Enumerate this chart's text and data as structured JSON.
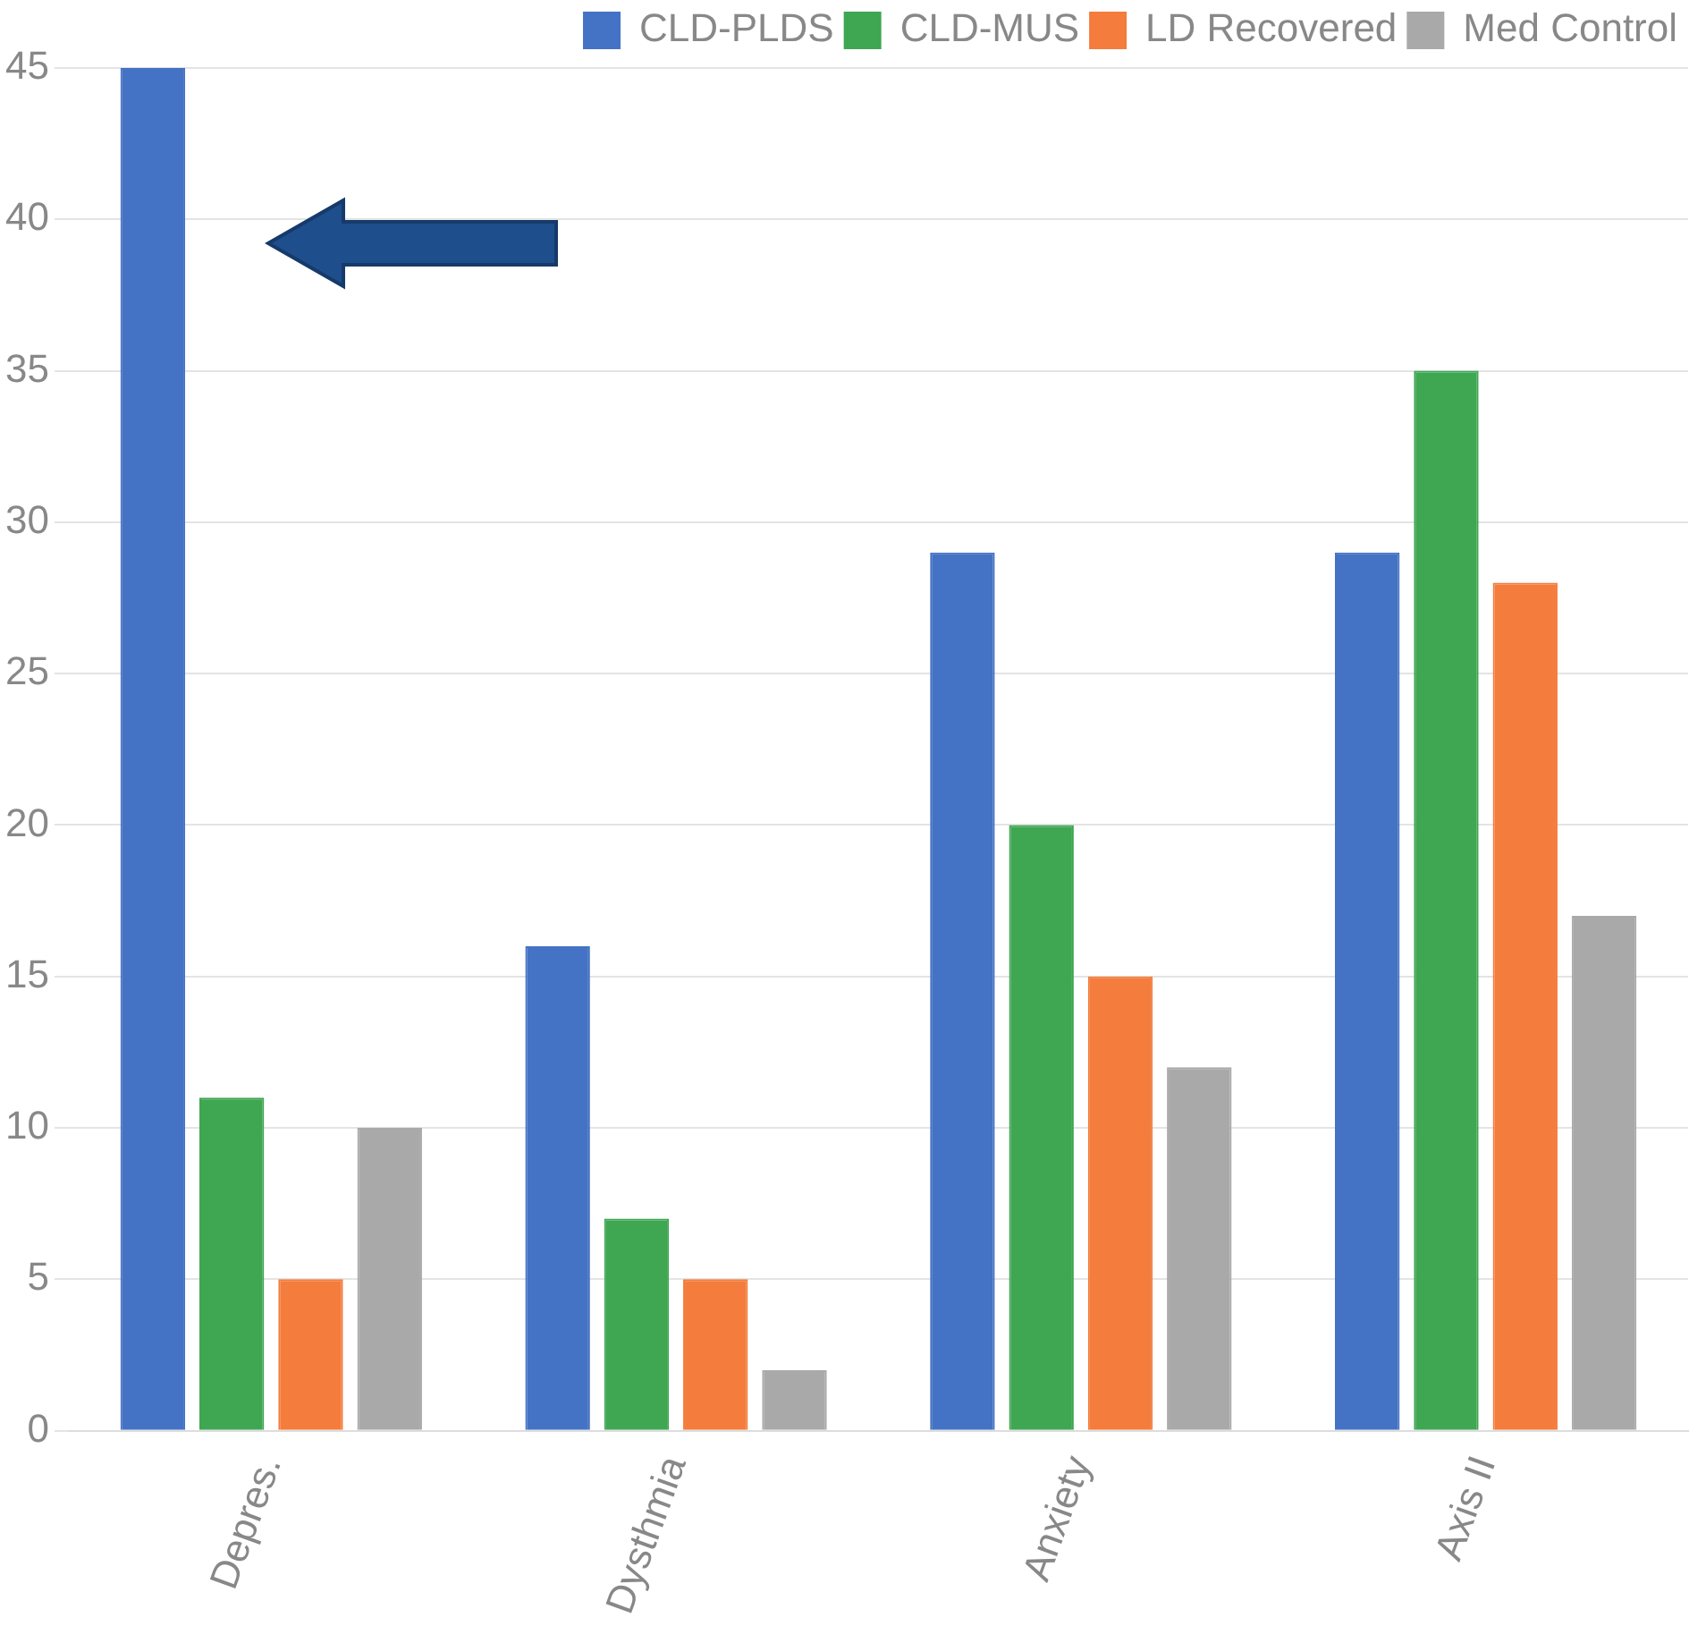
{
  "chart_data": {
    "type": "bar",
    "categories": [
      "Depres.",
      "Dysthmia",
      "Anxiety",
      "Axis II"
    ],
    "series": [
      {
        "name": "CLD-PLDS",
        "color": "#4472c4",
        "values": [
          45,
          16,
          29,
          29
        ]
      },
      {
        "name": "CLD-MUS",
        "color": "#3fa652",
        "values": [
          11,
          7,
          20,
          35
        ]
      },
      {
        "name": "LD Recovered",
        "color": "#f47c3c",
        "values": [
          5,
          5,
          15,
          28
        ]
      },
      {
        "name": "Med Control",
        "color": "#a9a9a9",
        "values": [
          10,
          2,
          12,
          17
        ]
      }
    ],
    "ylim": [
      0,
      45
    ],
    "yticks": [
      0,
      5,
      10,
      15,
      20,
      25,
      30,
      35,
      40,
      45
    ],
    "grid": "y",
    "legend": "top right"
  }
}
